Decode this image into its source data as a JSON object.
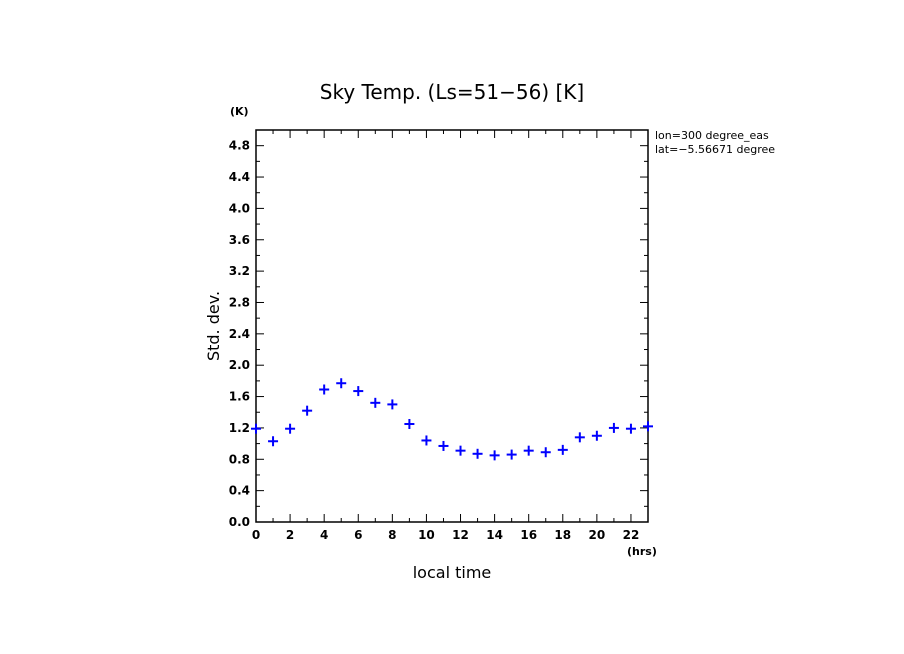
{
  "chart_data": {
    "type": "scatter",
    "title": "Sky Temp. (Ls=51−56) [K]",
    "xlabel": "local time",
    "ylabel": "Std. dev.",
    "x_unit": "(hrs)",
    "y_unit": "(K)",
    "xlim": [
      0,
      23
    ],
    "ylim": [
      0,
      5
    ],
    "x_ticks": [
      "0",
      "2",
      "4",
      "6",
      "8",
      "10",
      "12",
      "14",
      "16",
      "18",
      "20",
      "22"
    ],
    "y_ticks": [
      "0.0",
      "0.4",
      "0.8",
      "1.2",
      "1.6",
      "2.0",
      "2.4",
      "2.8",
      "3.2",
      "3.6",
      "4.0",
      "4.4",
      "4.8"
    ],
    "marker": "+",
    "marker_color": "#0000ff",
    "annotations": [
      "lon=300 degree_eas",
      "lat=−5.56671 degree"
    ],
    "series": [
      {
        "x": [
          0,
          1,
          2,
          3,
          4,
          5,
          6,
          7,
          8,
          9,
          10,
          11,
          12,
          13,
          14,
          15,
          16,
          17,
          18,
          19,
          20,
          21,
          22,
          23
        ],
        "values": [
          1.19,
          1.03,
          1.19,
          1.42,
          1.69,
          1.77,
          1.67,
          1.52,
          1.5,
          1.25,
          1.04,
          0.97,
          0.91,
          0.87,
          0.85,
          0.86,
          0.91,
          0.89,
          0.92,
          1.08,
          1.1,
          1.2,
          1.19,
          1.22
        ]
      }
    ]
  }
}
